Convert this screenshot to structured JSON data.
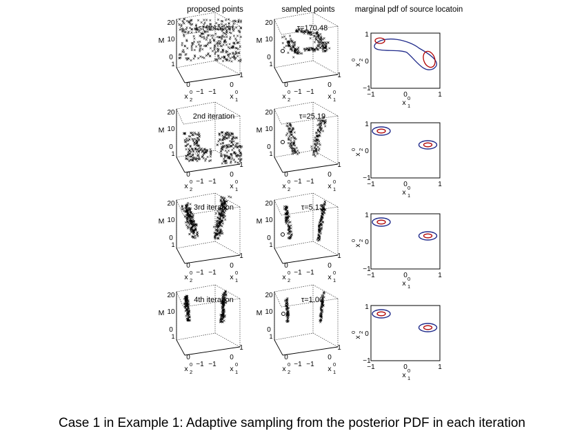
{
  "column_titles": [
    "proposed points",
    "sampled points",
    "marginal pdf of source locatoin"
  ],
  "caption": "Case 1 in Example 1: Adaptive sampling from the posterior PDF in each iteration",
  "axis_text": {
    "m_label": "M",
    "z_ticks": [
      "20",
      "10",
      "0"
    ],
    "z_bottom": "1",
    "x2_label": "x",
    "x2_sub": "2",
    "x1_label": "x",
    "x1_sub": "1",
    "sup": "0",
    "x2_tick0": "0",
    "x2_tick1": "−1",
    "x1_tick0": "−1",
    "x1_tick1": "0",
    "x1_tick2": "1",
    "pdf_yticks": [
      "1",
      "0",
      "−1"
    ],
    "pdf_xticks": [
      "−1",
      "0",
      "1"
    ]
  },
  "colors": {
    "blue": "#0000ff",
    "green": "#00ff00",
    "red": "#ff0000",
    "magenta": "#ff00ff",
    "contour_outer": "#1f2a8a",
    "contour_inner": "#b00000"
  },
  "chart_data": [
    {
      "type": "scatter",
      "title": "1st iteration",
      "clusters": [
        {
          "color": "blue",
          "x1": 0,
          "x2": 0,
          "M": 12,
          "spread": "uniform"
        }
      ]
    },
    {
      "type": "scatter",
      "title": "τ=170.48",
      "clusters": [
        {
          "color": "green",
          "spread": "two ridges connected"
        }
      ]
    },
    {
      "type": "contour",
      "x1_range": [
        -1,
        1
      ],
      "x2_range": [
        -1,
        1
      ],
      "modes": [
        {
          "x1": -0.7,
          "x2": 0.6
        },
        {
          "x1": 0.65,
          "x2": 0.15
        }
      ],
      "connected": true
    },
    {
      "type": "scatter",
      "title": "2nd iteration",
      "clusters": [
        {
          "color": "green"
        },
        {
          "color": "blue"
        },
        {
          "color": "red"
        },
        {
          "color": "magenta"
        }
      ]
    },
    {
      "type": "scatter",
      "title": "τ=25.19",
      "clusters": [
        {
          "color": "green",
          "spread": "two arcs"
        }
      ]
    },
    {
      "type": "contour",
      "x1_range": [
        -1,
        1
      ],
      "x2_range": [
        -1,
        1
      ],
      "modes": [
        {
          "x1": -0.7,
          "x2": 0.7
        },
        {
          "x1": 0.65,
          "x2": 0.2
        }
      ],
      "connected": false
    },
    {
      "type": "scatter",
      "title": "3rd iteration",
      "clusters": [
        {
          "color": "red"
        },
        {
          "color": "blue"
        }
      ]
    },
    {
      "type": "scatter",
      "title": "τ=5.13",
      "clusters": [
        {
          "color": "green",
          "spread": "two thin ridges"
        }
      ]
    },
    {
      "type": "contour",
      "x1_range": [
        -1,
        1
      ],
      "x2_range": [
        -1,
        1
      ],
      "modes": [
        {
          "x1": -0.7,
          "x2": 0.7
        },
        {
          "x1": 0.65,
          "x2": 0.2
        }
      ],
      "connected": false
    },
    {
      "type": "scatter",
      "title": "4th iteration",
      "clusters": [
        {
          "color": "red"
        },
        {
          "color": "blue"
        }
      ]
    },
    {
      "type": "scatter",
      "title": "τ=1.00",
      "clusters": [
        {
          "color": "green",
          "spread": "two very thin ridges"
        }
      ]
    },
    {
      "type": "contour",
      "x1_range": [
        -1,
        1
      ],
      "x2_range": [
        -1,
        1
      ],
      "modes": [
        {
          "x1": -0.7,
          "x2": 0.7
        },
        {
          "x1": 0.65,
          "x2": 0.2
        }
      ],
      "connected": false
    }
  ]
}
